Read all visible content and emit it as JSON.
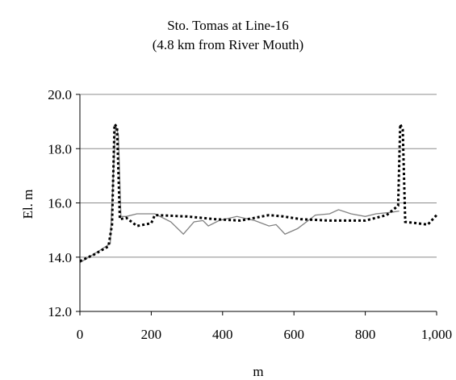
{
  "chart_data": {
    "type": "line",
    "title": "Sto. Tomas at Line-16",
    "subtitle": "(4.8 km from River Mouth)",
    "xlabel": "m",
    "ylabel": "El. m",
    "xlim": [
      0,
      1000
    ],
    "ylim": [
      12.0,
      20.0
    ],
    "x_ticks": [
      0,
      200,
      400,
      600,
      800,
      1000
    ],
    "x_tick_labels": [
      "0",
      "200",
      "400",
      "600",
      "800",
      "1,000"
    ],
    "y_ticks": [
      12.0,
      14.0,
      16.0,
      18.0,
      20.0
    ],
    "y_tick_labels": [
      "12.0",
      "14.0",
      "16.0",
      "18.0",
      "20.0"
    ],
    "grid": "horizontal",
    "legend": "none",
    "series": [
      {
        "style": "solid",
        "color": "#808080",
        "points": [
          [
            0,
            13.8
          ],
          [
            25,
            14.0
          ],
          [
            50,
            14.2
          ],
          [
            85,
            14.5
          ],
          [
            100,
            18.9
          ],
          [
            108,
            18.5
          ],
          [
            115,
            15.5
          ],
          [
            130,
            15.5
          ],
          [
            160,
            15.6
          ],
          [
            210,
            15.6
          ],
          [
            255,
            15.3
          ],
          [
            290,
            14.85
          ],
          [
            320,
            15.3
          ],
          [
            345,
            15.35
          ],
          [
            360,
            15.15
          ],
          [
            390,
            15.35
          ],
          [
            440,
            15.5
          ],
          [
            490,
            15.35
          ],
          [
            530,
            15.15
          ],
          [
            550,
            15.2
          ],
          [
            575,
            14.85
          ],
          [
            610,
            15.05
          ],
          [
            640,
            15.35
          ],
          [
            660,
            15.55
          ],
          [
            700,
            15.6
          ],
          [
            725,
            15.75
          ],
          [
            760,
            15.6
          ],
          [
            800,
            15.5
          ],
          [
            830,
            15.6
          ],
          [
            870,
            15.65
          ],
          [
            895,
            15.7
          ]
        ]
      },
      {
        "style": "dotted",
        "color": "#000000",
        "points": [
          [
            0,
            13.85
          ],
          [
            40,
            14.1
          ],
          [
            80,
            14.4
          ],
          [
            90,
            15.2
          ],
          [
            97,
            18.9
          ],
          [
            104,
            18.8
          ],
          [
            112,
            15.4
          ],
          [
            130,
            15.45
          ],
          [
            160,
            15.15
          ],
          [
            200,
            15.25
          ],
          [
            210,
            15.55
          ],
          [
            300,
            15.5
          ],
          [
            380,
            15.4
          ],
          [
            450,
            15.35
          ],
          [
            530,
            15.55
          ],
          [
            570,
            15.5
          ],
          [
            620,
            15.4
          ],
          [
            700,
            15.35
          ],
          [
            800,
            15.35
          ],
          [
            860,
            15.55
          ],
          [
            892,
            15.9
          ],
          [
            898,
            18.9
          ],
          [
            905,
            18.7
          ],
          [
            912,
            15.3
          ],
          [
            945,
            15.25
          ],
          [
            975,
            15.2
          ],
          [
            1000,
            15.55
          ]
        ]
      }
    ]
  }
}
